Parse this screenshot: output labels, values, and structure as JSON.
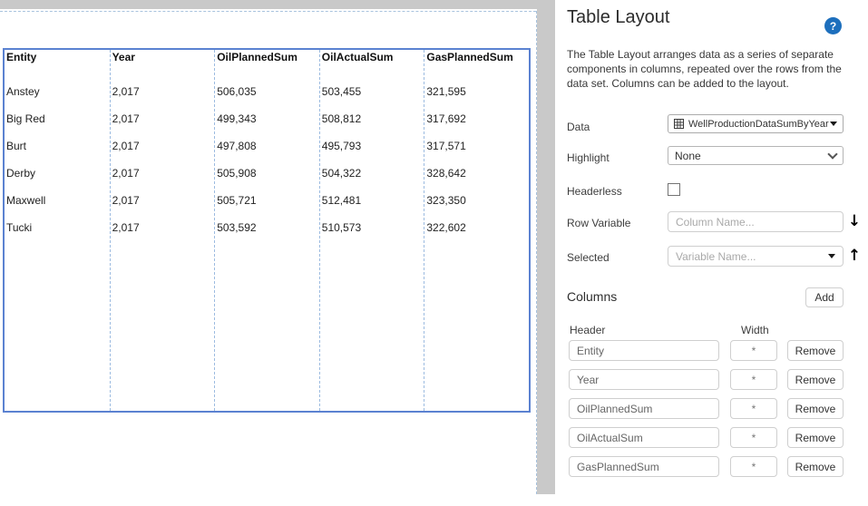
{
  "colors": {
    "table_border_blue": "#5b82d1",
    "column_dash_blue": "#9cbbe0",
    "selection_dash_blue": "#a9c3de",
    "gutter_gray": "#c9c9c9",
    "help_icon_blue": "#1d6fbd"
  },
  "preview_table": {
    "headers": [
      "Entity",
      "Year",
      "OilPlannedSum",
      "OilActualSum",
      "GasPlannedSum"
    ],
    "rows": [
      [
        "Anstey",
        "2,017",
        "506,035",
        "503,455",
        "321,595"
      ],
      [
        "Big Red",
        "2,017",
        "499,343",
        "508,812",
        "317,692"
      ],
      [
        "Burt",
        "2,017",
        "497,808",
        "495,793",
        "317,571"
      ],
      [
        "Derby",
        "2,017",
        "505,908",
        "504,322",
        "328,642"
      ],
      [
        "Maxwell",
        "2,017",
        "505,721",
        "512,481",
        "323,350"
      ],
      [
        "Tucki",
        "2,017",
        "503,592",
        "510,573",
        "322,602"
      ]
    ]
  },
  "panel": {
    "title": "Table Layout",
    "help_glyph": "?",
    "description": "The Table Layout arranges data as a series of separate components in columns, repeated over the rows from the data set. Columns can be added to the layout.",
    "fields": {
      "data_label": "Data",
      "data_value": "WellProductionDataSumByYear",
      "highlight_label": "Highlight",
      "highlight_value": "None",
      "headerless_label": "Headerless",
      "row_variable_label": "Row Variable",
      "row_variable_placeholder": "Column Name...",
      "selected_label": "Selected",
      "selected_placeholder": "Variable Name..."
    },
    "icons": {
      "move_down": "↓",
      "move_up": "↑"
    },
    "columns_section": {
      "heading": "Columns",
      "add_label": "Add",
      "header_col_label": "Header",
      "width_col_label": "Width",
      "remove_label": "Remove",
      "rows": [
        {
          "header": "Entity",
          "width": "*"
        },
        {
          "header": "Year",
          "width": "*"
        },
        {
          "header": "OilPlannedSum",
          "width": "*"
        },
        {
          "header": "OilActualSum",
          "width": "*"
        },
        {
          "header": "GasPlannedSum",
          "width": "*"
        }
      ]
    }
  }
}
